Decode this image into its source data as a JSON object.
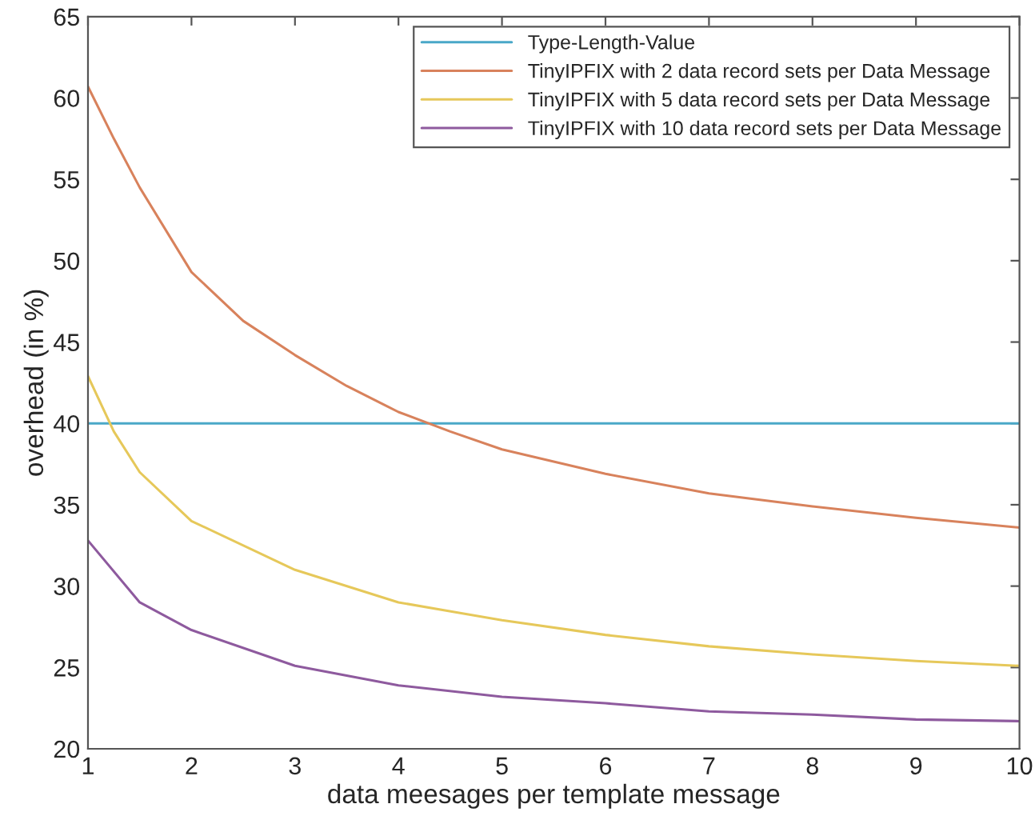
{
  "chart_data": {
    "type": "line",
    "xlabel": "data meesages per template message",
    "ylabel": "overhead (in %)",
    "xlim": [
      1,
      10
    ],
    "xticks": [
      1,
      2,
      3,
      4,
      5,
      6,
      7,
      8,
      9,
      10
    ],
    "ylim": [
      20,
      65
    ],
    "yticks": [
      20,
      25,
      30,
      35,
      40,
      45,
      50,
      55,
      60,
      65
    ],
    "grid": false,
    "legend": "top right",
    "line_style": "solid",
    "series": [
      {
        "name": "Type-Length-Value",
        "color": "#4aa8c8",
        "x": [
          1,
          10
        ],
        "values": [
          40,
          40
        ]
      },
      {
        "name": "TinyIPFIX with 2 data record sets per Data Message",
        "color": "#d8825c",
        "x": [
          1,
          1.25,
          1.5,
          2,
          2.5,
          3,
          3.5,
          4,
          4.5,
          5,
          6,
          7,
          8,
          9,
          10
        ],
        "values": [
          60.7,
          57.5,
          54.5,
          49.3,
          46.3,
          44.2,
          42.3,
          40.7,
          39.5,
          38.4,
          36.9,
          35.7,
          34.9,
          34.2,
          33.6
        ]
      },
      {
        "name": "TinyIPFIX with 5 data record sets per Data Message",
        "color": "#e6c85a",
        "x": [
          1,
          1.25,
          1.5,
          2,
          3,
          4,
          5,
          6,
          7,
          8,
          9,
          10
        ],
        "values": [
          42.9,
          39.5,
          37.0,
          34.0,
          31.0,
          29.0,
          27.9,
          27.0,
          26.3,
          25.8,
          25.4,
          25.1
        ]
      },
      {
        "name": "TinyIPFIX with 10 data record sets per Data Message",
        "color": "#8e5a9e",
        "x": [
          1,
          1.5,
          2,
          3,
          4,
          5,
          6,
          7,
          8,
          9,
          10
        ],
        "values": [
          32.8,
          29.0,
          27.3,
          25.1,
          23.9,
          23.2,
          22.8,
          22.3,
          22.1,
          21.8,
          21.7
        ]
      }
    ]
  }
}
